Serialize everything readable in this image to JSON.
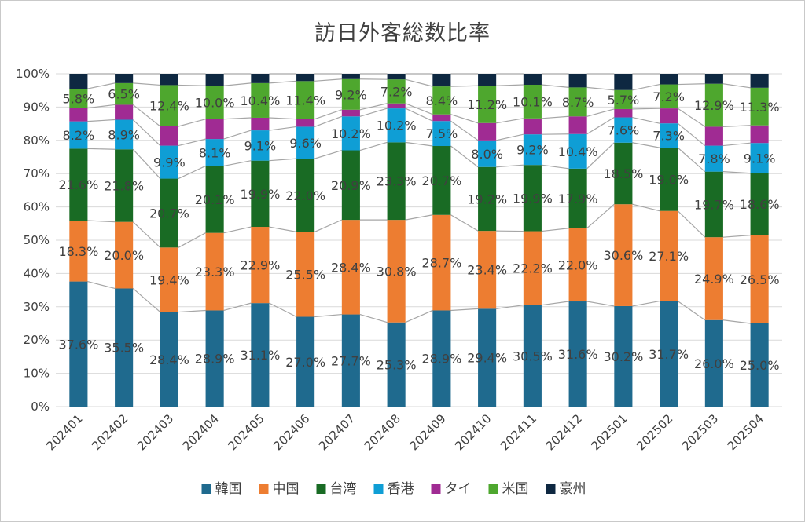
{
  "chart_data": {
    "type": "bar",
    "stacked": true,
    "normalized_percent": true,
    "title": "訪日外客総数比率",
    "categories": [
      "202401",
      "202402",
      "202403",
      "202404",
      "202405",
      "202406",
      "202407",
      "202408",
      "202409",
      "202410",
      "202411",
      "202412",
      "202501",
      "202502",
      "202503",
      "202504"
    ],
    "ylim": [
      0,
      100
    ],
    "yticks": [
      "0%",
      "10%",
      "20%",
      "30%",
      "40%",
      "50%",
      "60%",
      "70%",
      "80%",
      "90%",
      "100%"
    ],
    "grid": true,
    "legend_position": "bottom",
    "series_lines": true,
    "series": [
      {
        "name": "韓国",
        "color": "#1F6A8E",
        "values": [
          37.6,
          35.5,
          28.4,
          28.9,
          31.1,
          27.0,
          27.7,
          25.3,
          28.9,
          29.4,
          30.5,
          31.6,
          30.2,
          31.7,
          26.0,
          25.0
        ],
        "labels": [
          "37.6%",
          "35.5%",
          "28.4%",
          "28.9%",
          "31.1%",
          "27.0%",
          "27.7%",
          "25.3%",
          "28.9%",
          "29.4%",
          "30.5%",
          "31.6%",
          "30.2%",
          "31.7%",
          "26.0%",
          "25.0%"
        ]
      },
      {
        "name": "中国",
        "color": "#ED7D31",
        "values": [
          18.3,
          20.0,
          19.4,
          23.3,
          22.9,
          25.5,
          28.4,
          30.8,
          28.7,
          23.4,
          22.2,
          22.0,
          30.6,
          27.1,
          24.9,
          26.5
        ],
        "labels": [
          "18.3%",
          "20.0%",
          "19.4%",
          "23.3%",
          "22.9%",
          "25.5%",
          "28.4%",
          "30.8%",
          "28.7%",
          "23.4%",
          "22.2%",
          "22.0%",
          "30.6%",
          "27.1%",
          "24.9%",
          "26.5%"
        ]
      },
      {
        "name": "台湾",
        "color": "#196B24",
        "values": [
          21.6,
          21.8,
          20.7,
          20.1,
          19.9,
          22.0,
          20.9,
          23.3,
          20.7,
          19.2,
          19.9,
          17.9,
          18.5,
          19.0,
          19.7,
          18.6
        ],
        "labels": [
          "21.6%",
          "21.8%",
          "20.7%",
          "20.1%",
          "19.9%",
          "22.0%",
          "20.9%",
          "23.3%",
          "20.7%",
          "19.2%",
          "19.9%",
          "17.9%",
          "18.5%",
          "19.0%",
          "19.7%",
          "18.6%"
        ]
      },
      {
        "name": "香港",
        "color": "#0F9ED5",
        "values": [
          8.2,
          8.9,
          9.9,
          8.1,
          9.1,
          9.6,
          10.2,
          10.2,
          7.5,
          8.0,
          9.2,
          10.4,
          7.6,
          7.3,
          7.8,
          9.1
        ],
        "labels": [
          "8.2%",
          "8.9%",
          "9.9%",
          "8.1%",
          "9.1%",
          "9.6%",
          "10.2%",
          "10.2%",
          "7.5%",
          "8.0%",
          "9.2%",
          "10.4%",
          "7.6%",
          "7.3%",
          "7.8%",
          "9.1%"
        ]
      },
      {
        "name": "タイ",
        "color": "#A02B93",
        "values": [
          4.0,
          4.5,
          5.8,
          6.0,
          3.8,
          2.3,
          2.0,
          1.5,
          2.0,
          5.2,
          4.8,
          5.3,
          2.5,
          4.5,
          5.7,
          5.3
        ],
        "labels": []
      },
      {
        "name": "米国",
        "color": "#4EA72E",
        "values": [
          5.8,
          6.5,
          12.4,
          10.0,
          10.4,
          11.4,
          9.2,
          7.2,
          8.4,
          11.2,
          10.1,
          8.7,
          5.7,
          7.2,
          12.9,
          11.3
        ],
        "labels": [
          "5.8%",
          "6.5%",
          "12.4%",
          "10.0%",
          "10.4%",
          "11.4%",
          "9.2%",
          "7.2%",
          "8.4%",
          "11.2%",
          "10.1%",
          "8.7%",
          "5.7%",
          "7.2%",
          "12.9%",
          "11.3%"
        ]
      },
      {
        "name": "豪州",
        "color": "#0E2841",
        "values": [
          4.5,
          2.8,
          3.4,
          3.6,
          2.8,
          2.2,
          1.6,
          1.7,
          3.8,
          3.6,
          3.3,
          4.1,
          4.9,
          3.2,
          3.0,
          4.2
        ],
        "labels": []
      }
    ]
  }
}
